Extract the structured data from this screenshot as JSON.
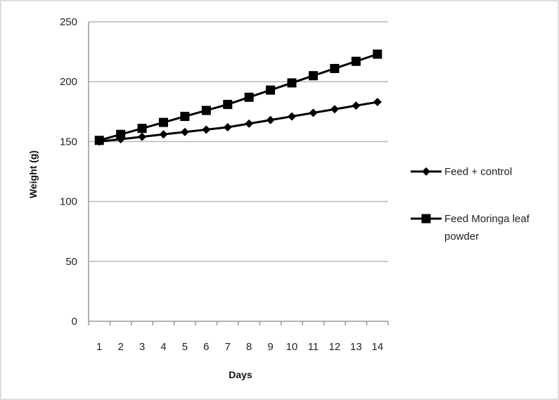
{
  "chart_data": {
    "type": "line",
    "xlabel": "Days",
    "ylabel": "Weight (g)",
    "x": [
      "1",
      "2",
      "3",
      "4",
      "5",
      "6",
      "7",
      "8",
      "9",
      "10",
      "11",
      "12",
      "13",
      "14"
    ],
    "ylim": [
      0,
      250
    ],
    "yticks": [
      "0",
      "50",
      "100",
      "150",
      "200",
      "250"
    ],
    "grid": true,
    "legend_position": "right",
    "series": [
      {
        "name": "Feed + control",
        "legend_lines": [
          "Feed + control"
        ],
        "marker": "diamond",
        "color": "#000000",
        "values": [
          150,
          152,
          154,
          156,
          158,
          160,
          162,
          165,
          168,
          171,
          174,
          177,
          180,
          183
        ]
      },
      {
        "name": "Feed Moringa leaf powder",
        "legend_lines": [
          "Feed Moringa leaf",
          "powder"
        ],
        "marker": "square",
        "color": "#000000",
        "values": [
          151,
          156,
          161,
          166,
          171,
          176,
          181,
          187,
          193,
          199,
          205,
          211,
          217,
          223
        ]
      }
    ]
  }
}
